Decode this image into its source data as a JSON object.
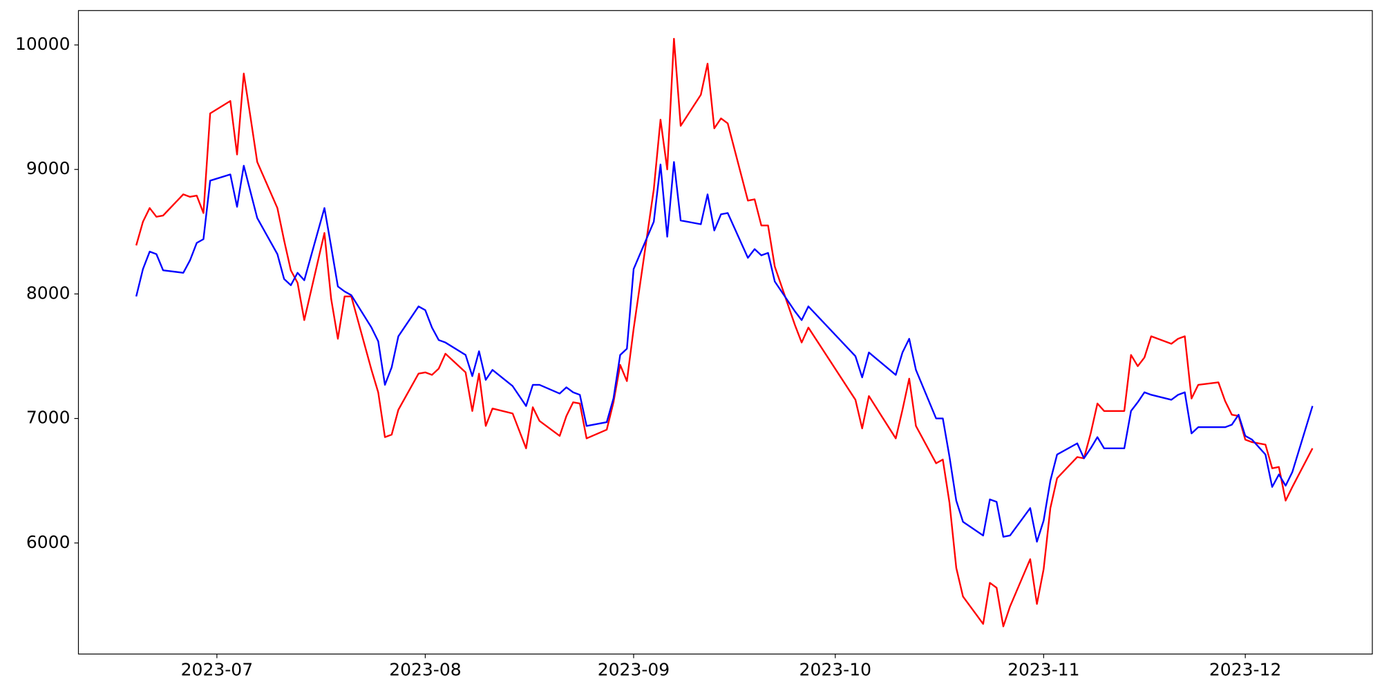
{
  "chart_data": {
    "type": "line",
    "x": [
      19527,
      19528,
      19529,
      19530,
      19531,
      19534,
      19535,
      19536,
      19537,
      19538,
      19541,
      19542,
      19543,
      19544,
      19545,
      19548,
      19549,
      19550,
      19551,
      19552,
      19555,
      19556,
      19557,
      19558,
      19559,
      19562,
      19563,
      19564,
      19565,
      19566,
      19569,
      19570,
      19571,
      19572,
      19573,
      19576,
      19577,
      19578,
      19579,
      19580,
      19583,
      19585,
      19586,
      19587,
      19590,
      19591,
      19592,
      19593,
      19594,
      19597,
      19598,
      19599,
      19600,
      19601,
      19604,
      19605,
      19606,
      19607,
      19608,
      19611,
      19612,
      19613,
      19614,
      19615,
      19618,
      19619,
      19620,
      19621,
      19622,
      19625,
      19626,
      19627,
      19634,
      19635,
      19636,
      19640,
      19641,
      19642,
      19643,
      19646,
      19647,
      19648,
      19649,
      19650,
      19653,
      19654,
      19655,
      19656,
      19657,
      19660,
      19661,
      19662,
      19663,
      19664,
      19667,
      19668,
      19669,
      19670,
      19671,
      19674,
      19675,
      19676,
      19677,
      19678,
      19681,
      19682,
      19683,
      19684,
      19685,
      19688,
      19689,
      19690,
      19691,
      19692,
      19693,
      19695,
      19696,
      19697,
      19698,
      19699,
      19702
    ],
    "series": [
      {
        "color": "#ff0000",
        "values": [
          8390,
          8580,
          8690,
          8620,
          8630,
          8800,
          8780,
          8790,
          8650,
          9450,
          9550,
          9120,
          9770,
          9420,
          9060,
          8690,
          8430,
          8190,
          8090,
          7790,
          8490,
          7960,
          7640,
          7980,
          7980,
          7390,
          7210,
          6850,
          6870,
          7070,
          7360,
          7370,
          7350,
          7400,
          7520,
          7370,
          7060,
          7360,
          6940,
          7080,
          7040,
          6760,
          7090,
          6980,
          6860,
          7020,
          7130,
          7120,
          6840,
          6910,
          7130,
          7430,
          7300,
          7720,
          8840,
          9400,
          9000,
          10050,
          9350,
          9600,
          9850,
          9330,
          9410,
          9370,
          8750,
          8760,
          8550,
          8550,
          8220,
          7750,
          7610,
          7730,
          7150,
          6920,
          7180,
          6840,
          7070,
          7320,
          6940,
          6640,
          6670,
          6320,
          5800,
          5570,
          5350,
          5680,
          5640,
          5330,
          5490,
          5870,
          5510,
          5790,
          6280,
          6520,
          6690,
          6680,
          6880,
          7120,
          7060,
          7060,
          7510,
          7420,
          7490,
          7660,
          7600,
          7640,
          7660,
          7160,
          7270,
          7290,
          7140,
          7030,
          7020,
          6830,
          6810,
          6790,
          6600,
          6610,
          6340,
          6450,
          6760
        ]
      },
      {
        "color": "#0000ff",
        "values": [
          7980,
          8200,
          8340,
          8320,
          8190,
          8170,
          8270,
          8410,
          8440,
          8910,
          8960,
          8700,
          9030,
          8820,
          8610,
          8320,
          8120,
          8070,
          8170,
          8110,
          8690,
          8380,
          8060,
          8020,
          7990,
          7730,
          7620,
          7270,
          7410,
          7660,
          7900,
          7870,
          7730,
          7630,
          7610,
          7510,
          7340,
          7540,
          7310,
          7390,
          7260,
          7100,
          7270,
          7270,
          7200,
          7250,
          7210,
          7190,
          6940,
          6970,
          7160,
          7510,
          7560,
          8200,
          8580,
          9040,
          8460,
          9060,
          8590,
          8560,
          8800,
          8510,
          8640,
          8650,
          8290,
          8360,
          8310,
          8330,
          8100,
          7860,
          7790,
          7900,
          7500,
          7330,
          7530,
          7350,
          7530,
          7640,
          7390,
          7000,
          7000,
          6690,
          6340,
          6170,
          6060,
          6350,
          6330,
          6050,
          6060,
          6280,
          6010,
          6180,
          6500,
          6710,
          6800,
          6680,
          6760,
          6850,
          6760,
          6760,
          7060,
          7130,
          7210,
          7190,
          7150,
          7190,
          7210,
          6880,
          6930,
          6930,
          6930,
          6950,
          7030,
          6860,
          6830,
          6710,
          6450,
          6550,
          6460,
          6570,
          7100
        ]
      }
    ],
    "xlim": [
      19518.4,
      19710.9
    ],
    "xticks": [
      {
        "value": 19539,
        "label": "2023-07"
      },
      {
        "value": 19570,
        "label": "2023-08"
      },
      {
        "value": 19601,
        "label": "2023-09"
      },
      {
        "value": 19631,
        "label": "2023-10"
      },
      {
        "value": 19662,
        "label": "2023-11"
      },
      {
        "value": 19692,
        "label": "2023-12"
      }
    ],
    "ylim": [
      5108,
      10276
    ],
    "yticks": [
      6000,
      7000,
      8000,
      9000,
      10000
    ],
    "grid": false
  }
}
